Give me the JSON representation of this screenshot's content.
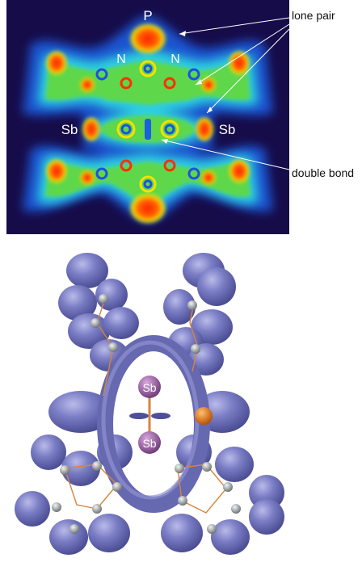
{
  "elf_map": {
    "atom_labels": {
      "p": "P",
      "n_left": "N",
      "n_right": "N",
      "sb_left": "Sb",
      "sb_right": "Sb"
    }
  },
  "annotations": {
    "lone_pair": "lone pair",
    "double_bond": "double bond"
  },
  "isosurface": {
    "atom_labels": {
      "sb_top": "Sb",
      "sb_bottom": "Sb"
    },
    "colors": {
      "surface": "#7072b8",
      "antimony": "#9a5aa0",
      "phosphorus": "#e07a1a",
      "carbon": "#9aa0a2",
      "bond": "#d8843a"
    }
  }
}
